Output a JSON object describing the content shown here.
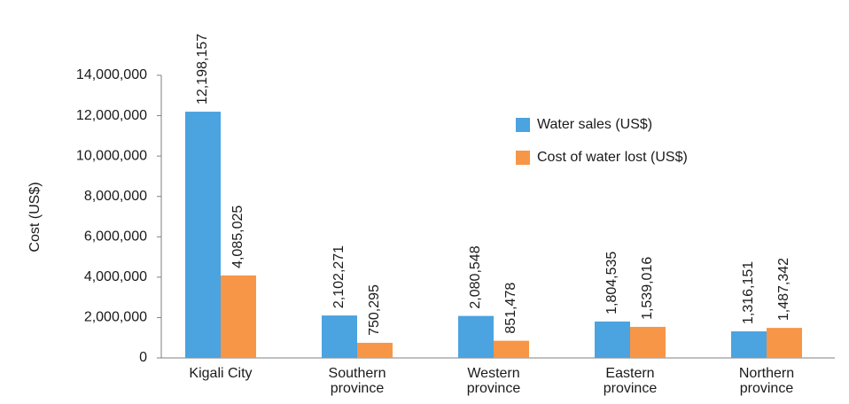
{
  "chart_data": {
    "type": "bar",
    "y_label": "Cost (US$)",
    "categories": [
      "Kigali City",
      "Southern province",
      "Western province",
      "Eastern province",
      "Northern province"
    ],
    "series": [
      {
        "name": "Water sales (US$)",
        "color": "#4ba3e0",
        "values": [
          12198157,
          2102271,
          2080548,
          1804535,
          1316151
        ],
        "value_labels": [
          "12,198,157",
          "2,102,271",
          "2,080,548",
          "1,804,535",
          "1,316,151"
        ]
      },
      {
        "name": "Cost of water lost (US$)",
        "color": "#f79646",
        "values": [
          4085025,
          750295,
          851478,
          1539016,
          1487342
        ],
        "value_labels": [
          "4,085,025",
          "750,295",
          "851,478",
          "1,539,016",
          "1,487,342"
        ]
      }
    ],
    "ylim": [
      0,
      14000000
    ],
    "yticks": [
      0,
      {
        "value": 2000000,
        "label": "2,000,000"
      },
      {
        "value": 4000000,
        "label": "4,000,000"
      },
      {
        "value": 6000000,
        "label": "6,000,000"
      },
      {
        "value": 8000000,
        "label": "8,000,000"
      },
      {
        "value": 10000000,
        "label": "10,000,000"
      },
      {
        "value": 12000000,
        "label": "12,000,000"
      },
      {
        "value": 14000000,
        "label": "14,000,000"
      }
    ],
    "grid": false,
    "legend": "upper right"
  }
}
